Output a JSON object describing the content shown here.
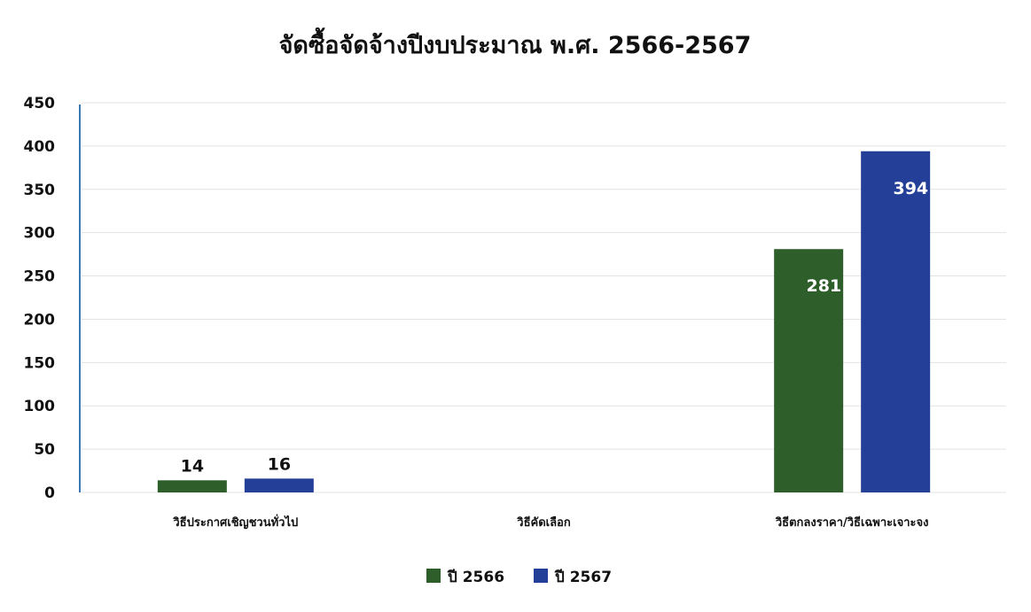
{
  "chart_data": {
    "type": "bar",
    "title": "จัดซื้อจัดจ้างปีงบประมาณ  พ.ศ. 2566-2567",
    "xlabel": "",
    "ylabel": "",
    "categories": [
      "วิธีประกาศเชิญชวนทั่วไป",
      "วิธีคัดเลือก",
      "วิธีตกลงราคา/วิธีเฉพาะเจาะจง"
    ],
    "series": [
      {
        "name": "ปี 2566",
        "color": "#2e5e2a",
        "values": [
          14,
          0,
          281
        ],
        "data_labels": [
          "14",
          "",
          "281"
        ]
      },
      {
        "name": "ปี 2567",
        "color": "#243f97",
        "values": [
          16,
          0,
          394
        ],
        "data_labels": [
          "16",
          "",
          "394"
        ]
      }
    ],
    "ylim": [
      0,
      450
    ],
    "yticks": [
      0,
      50,
      100,
      150,
      200,
      250,
      300,
      350,
      400,
      450
    ],
    "grid": true,
    "legend_position": "bottom"
  }
}
